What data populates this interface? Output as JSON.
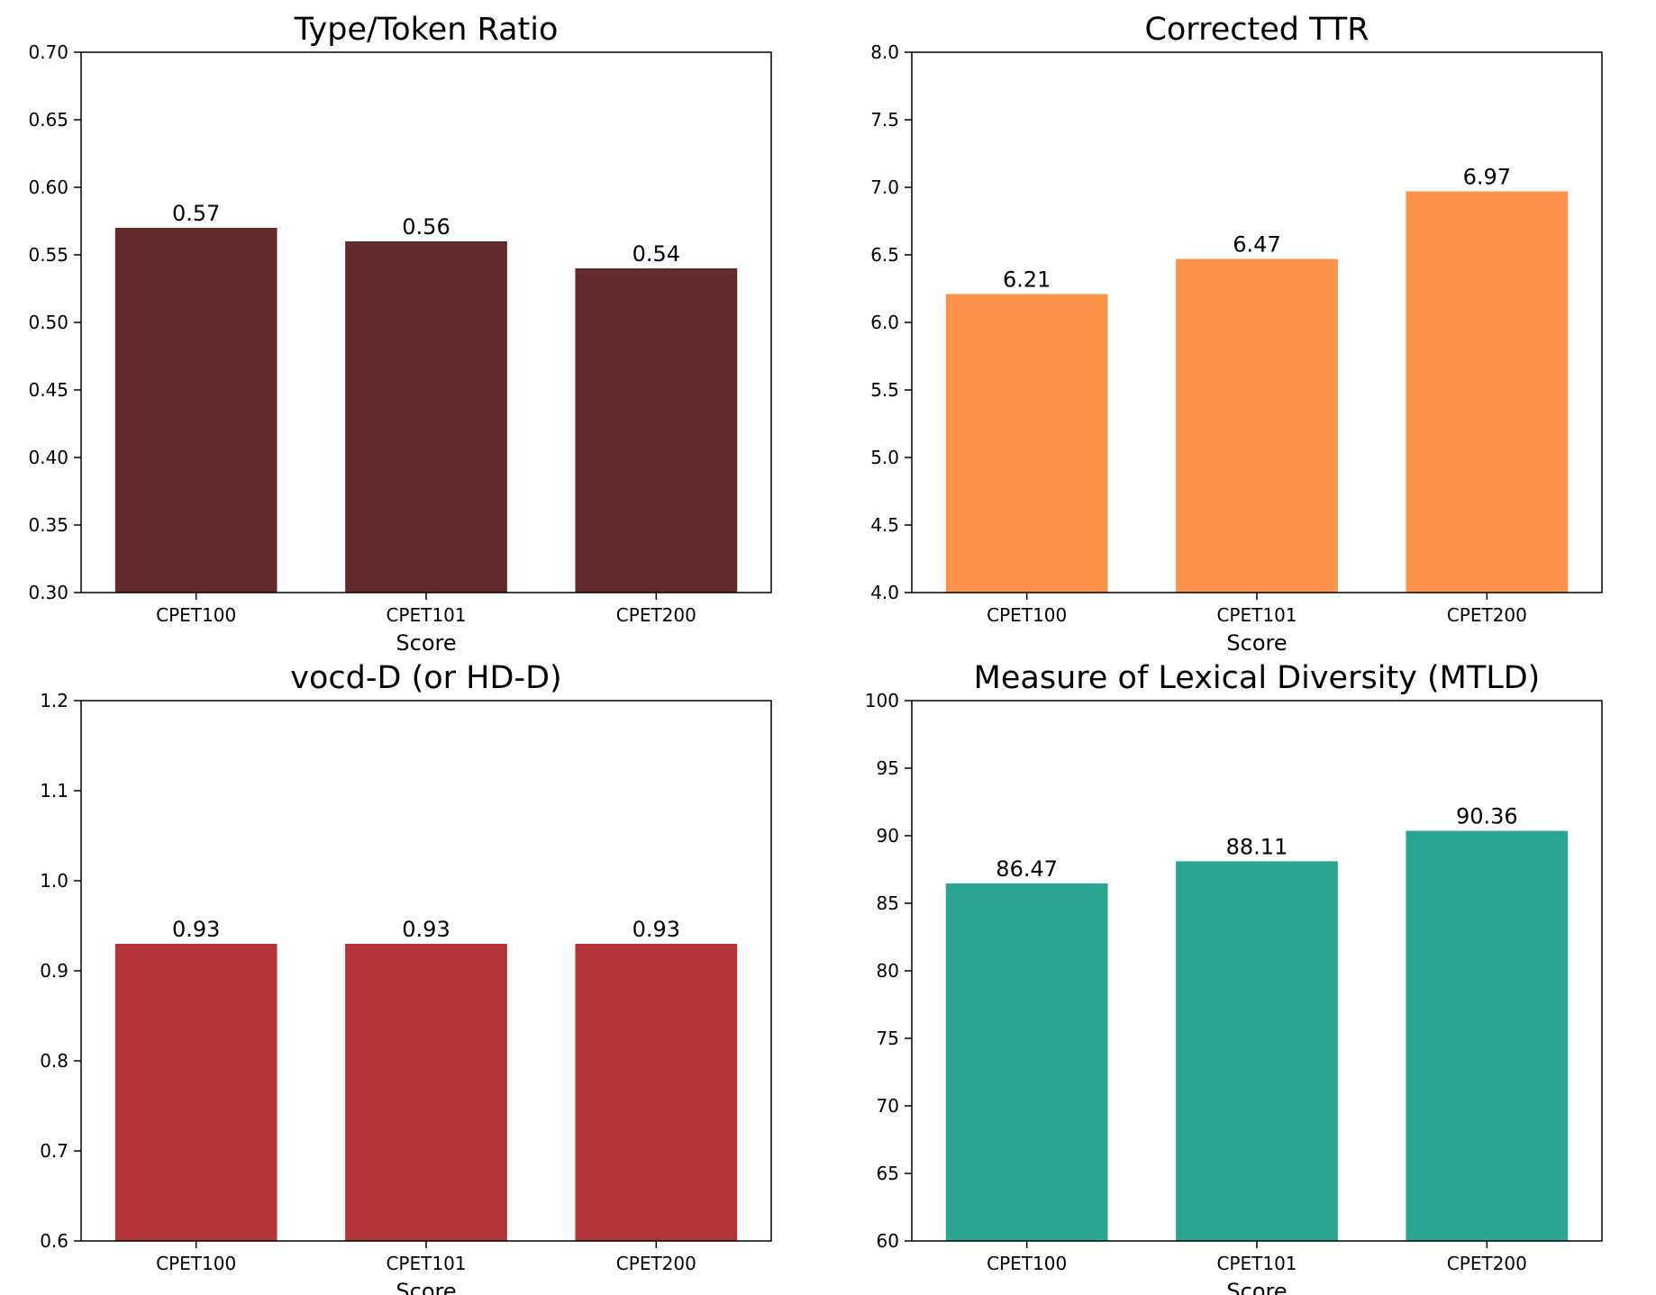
{
  "chart_data": [
    {
      "type": "bar",
      "title": "Type/Token Ratio",
      "xlabel": "Score",
      "ylabel": "",
      "categories": [
        "CPET100",
        "CPET101",
        "CPET200"
      ],
      "values": [
        0.57,
        0.56,
        0.54
      ],
      "data_labels": [
        "0.57",
        "0.56",
        "0.54"
      ],
      "ylim": [
        0.3,
        0.7
      ],
      "yticks": [
        "0.30",
        "0.35",
        "0.40",
        "0.45",
        "0.50",
        "0.55",
        "0.60",
        "0.65",
        "0.70"
      ],
      "color": "#612a2b",
      "grid": false
    },
    {
      "type": "bar",
      "title": "Corrected TTR",
      "xlabel": "Score",
      "ylabel": "",
      "categories": [
        "CPET100",
        "CPET101",
        "CPET200"
      ],
      "values": [
        6.21,
        6.47,
        6.97
      ],
      "data_labels": [
        "6.21",
        "6.47",
        "6.97"
      ],
      "ylim": [
        4.0,
        8.0
      ],
      "yticks": [
        "4.0",
        "4.5",
        "5.0",
        "5.5",
        "6.0",
        "6.5",
        "7.0",
        "7.5",
        "8.0"
      ],
      "color": "#fd924a",
      "grid": false
    },
    {
      "type": "bar",
      "title": "vocd-D (or HD-D)",
      "xlabel": "Score",
      "ylabel": "",
      "categories": [
        "CPET100",
        "CPET101",
        "CPET200"
      ],
      "values": [
        0.93,
        0.93,
        0.93
      ],
      "data_labels": [
        "0.93",
        "0.93",
        "0.93"
      ],
      "ylim": [
        0.6,
        1.2
      ],
      "yticks": [
        "0.6",
        "0.7",
        "0.8",
        "0.9",
        "1.0",
        "1.1",
        "1.2"
      ],
      "color": "#b33437",
      "grid": false
    },
    {
      "type": "bar",
      "title": "Measure of Lexical Diversity (MTLD)",
      "xlabel": "Score",
      "ylabel": "",
      "categories": [
        "CPET100",
        "CPET101",
        "CPET200"
      ],
      "values": [
        86.47,
        88.11,
        90.36
      ],
      "data_labels": [
        "86.47",
        "88.11",
        "90.36"
      ],
      "ylim": [
        60,
        100
      ],
      "yticks": [
        "60",
        "65",
        "70",
        "75",
        "80",
        "85",
        "90",
        "95",
        "100"
      ],
      "color": "#2aa591",
      "grid": false
    }
  ]
}
